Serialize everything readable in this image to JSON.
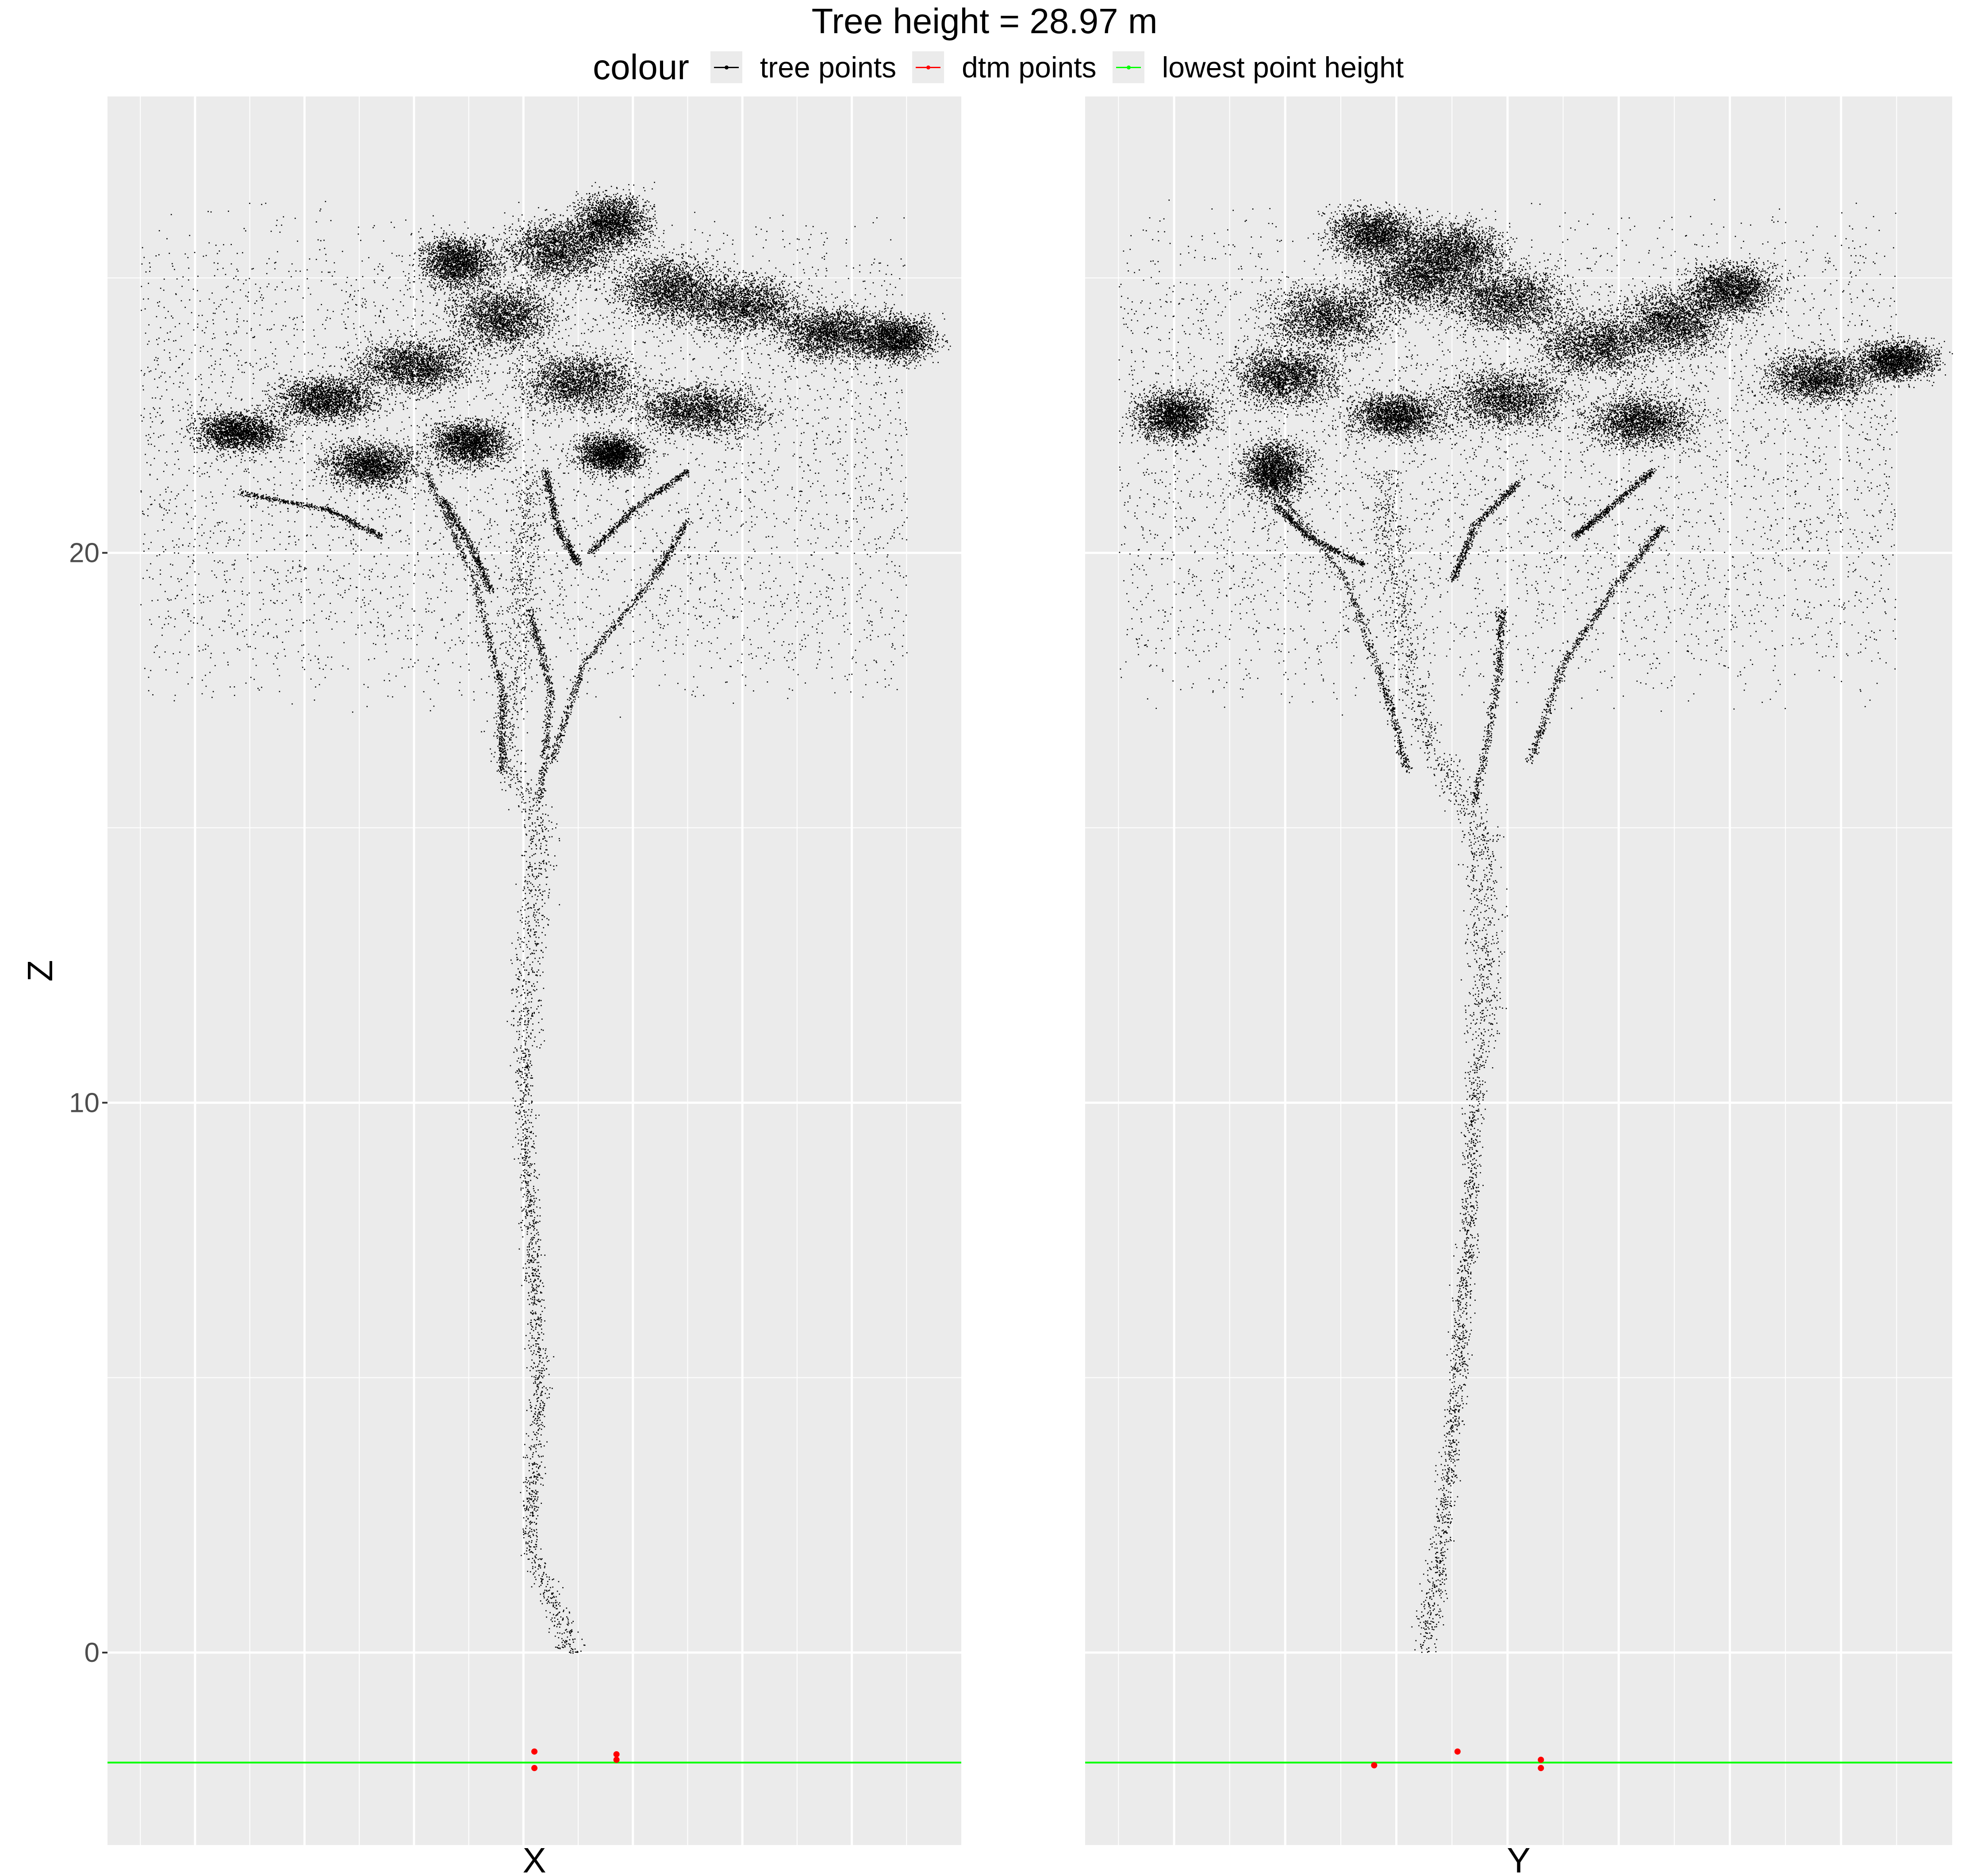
{
  "chart_data": {
    "type": "scatter",
    "title": "Tree height = 28.97 m",
    "legend": {
      "title": "colour",
      "placement": "top",
      "entries": [
        {
          "label": "tree points",
          "color": "#000000"
        },
        {
          "label": "dtm points",
          "color": "#ff0000"
        },
        {
          "label": "lowest point height",
          "color": "#00ff00"
        }
      ]
    },
    "ylabel": "Z",
    "ylim": [
      -3.5,
      28.3
    ],
    "yticks": [
      0,
      10,
      20
    ],
    "grid": true,
    "lowest_point_height": -2.0,
    "panels": [
      {
        "xlabel": "X",
        "trunk": [
          [
            0.0,
            0.45
          ],
          [
            2.0,
            0.05
          ],
          [
            5.0,
            0.15
          ],
          [
            8.0,
            0.05
          ],
          [
            10.0,
            0.0
          ],
          [
            12.0,
            0.02
          ],
          [
            15.0,
            0.15
          ],
          [
            16.5,
            -0.2
          ],
          [
            18.0,
            -0.05
          ],
          [
            19.5,
            0.0
          ],
          [
            21.0,
            0.05
          ]
        ],
        "branches": [
          [
            [
              16.0,
              -0.2
            ],
            [
              17.5,
              -0.2
            ],
            [
              19.5,
              -0.45
            ],
            [
              21.5,
              -0.9
            ]
          ],
          [
            [
              16.2,
              0.25
            ],
            [
              18.0,
              0.55
            ],
            [
              19.6,
              1.2
            ],
            [
              20.6,
              1.5
            ]
          ],
          [
            [
              15.5,
              0.15
            ],
            [
              17.5,
              0.25
            ],
            [
              19.0,
              0.05
            ]
          ],
          [
            [
              19.3,
              -0.3
            ],
            [
              20.2,
              -0.5
            ],
            [
              21.0,
              -0.75
            ]
          ],
          [
            [
              20.3,
              -1.3
            ],
            [
              20.8,
              -1.8
            ],
            [
              21.1,
              -2.6
            ]
          ],
          [
            [
              20.0,
              0.6
            ],
            [
              20.8,
              1.0
            ],
            [
              21.5,
              1.5
            ]
          ],
          [
            [
              19.8,
              0.5
            ],
            [
              20.5,
              0.3
            ],
            [
              21.5,
              0.2
            ]
          ]
        ],
        "crown_blobs": [
          [
            -2.6,
            22.2,
            0.7,
            0.6
          ],
          [
            -1.8,
            22.8,
            0.8,
            0.7
          ],
          [
            -1.0,
            23.4,
            0.9,
            0.8
          ],
          [
            -0.2,
            24.3,
            0.8,
            1.0
          ],
          [
            -0.6,
            25.3,
            0.6,
            0.8
          ],
          [
            0.3,
            25.5,
            0.8,
            1.0
          ],
          [
            0.8,
            26.0,
            0.6,
            0.9
          ],
          [
            1.3,
            24.8,
            0.8,
            1.0
          ],
          [
            2.0,
            24.5,
            0.9,
            0.9
          ],
          [
            2.8,
            24.0,
            0.8,
            0.8
          ],
          [
            3.4,
            23.9,
            0.6,
            0.7
          ],
          [
            0.5,
            23.1,
            0.9,
            0.9
          ],
          [
            -1.4,
            21.6,
            0.7,
            0.7
          ],
          [
            1.6,
            22.6,
            1.0,
            0.8
          ],
          [
            0.8,
            21.8,
            0.5,
            0.6
          ],
          [
            -0.5,
            22.0,
            0.6,
            0.7
          ]
        ],
        "xlim": [
          -3.8,
          4.0
        ],
        "dtm_points": [
          [
            0.1,
            -1.8
          ],
          [
            0.1,
            -2.1
          ],
          [
            0.85,
            -1.85
          ],
          [
            0.85,
            -1.95
          ]
        ]
      },
      {
        "xlabel": "Y",
        "trunk": [
          [
            0.0,
            -0.75
          ],
          [
            2.0,
            -0.6
          ],
          [
            5.0,
            -0.45
          ],
          [
            8.0,
            -0.35
          ],
          [
            10.0,
            -0.3
          ],
          [
            12.0,
            -0.2
          ],
          [
            15.0,
            -0.25
          ],
          [
            16.5,
            -0.7
          ],
          [
            18.0,
            -0.9
          ],
          [
            19.5,
            -1.0
          ],
          [
            21.0,
            -1.1
          ]
        ],
        "branches": [
          [
            [
              16.0,
              -0.9
            ],
            [
              17.5,
              -1.1
            ],
            [
              19.5,
              -1.45
            ],
            [
              21.5,
              -2.2
            ]
          ],
          [
            [
              16.2,
              0.2
            ],
            [
              18.0,
              0.5
            ],
            [
              19.5,
              1.0
            ],
            [
              20.5,
              1.4
            ]
          ],
          [
            [
              15.5,
              -0.3
            ],
            [
              17.5,
              -0.1
            ],
            [
              19.0,
              -0.05
            ]
          ],
          [
            [
              19.8,
              -1.3
            ],
            [
              20.3,
              -1.8
            ],
            [
              20.9,
              -2.1
            ]
          ],
          [
            [
              19.5,
              -0.5
            ],
            [
              20.5,
              -0.3
            ],
            [
              21.3,
              0.1
            ]
          ],
          [
            [
              20.3,
              0.6
            ],
            [
              20.8,
              0.9
            ],
            [
              21.5,
              1.3
            ]
          ]
        ],
        "crown_blobs": [
          [
            -3.0,
            22.5,
            0.6,
            0.8
          ],
          [
            -2.0,
            23.2,
            0.8,
            0.9
          ],
          [
            -1.6,
            24.3,
            0.9,
            1.0
          ],
          [
            -0.8,
            25.0,
            0.9,
            1.0
          ],
          [
            0.0,
            24.6,
            0.9,
            1.0
          ],
          [
            -1.2,
            25.8,
            0.7,
            0.8
          ],
          [
            -0.5,
            25.5,
            0.8,
            0.9
          ],
          [
            0.8,
            23.8,
            0.9,
            1.0
          ],
          [
            1.5,
            24.2,
            0.8,
            1.0
          ],
          [
            2.0,
            24.8,
            0.7,
            0.8
          ],
          [
            2.8,
            23.2,
            0.8,
            0.8
          ],
          [
            3.5,
            23.5,
            0.6,
            0.6
          ],
          [
            -2.1,
            21.5,
            0.5,
            0.9
          ],
          [
            1.2,
            22.4,
            0.8,
            0.8
          ],
          [
            0.0,
            22.8,
            0.9,
            0.9
          ],
          [
            -1.0,
            22.5,
            0.7,
            0.7
          ]
        ],
        "xlim": [
          -3.8,
          4.0
        ],
        "dtm_points": [
          [
            -1.2,
            -2.05
          ],
          [
            -0.45,
            -1.8
          ],
          [
            0.3,
            -1.95
          ],
          [
            0.3,
            -2.1
          ]
        ]
      }
    ]
  }
}
